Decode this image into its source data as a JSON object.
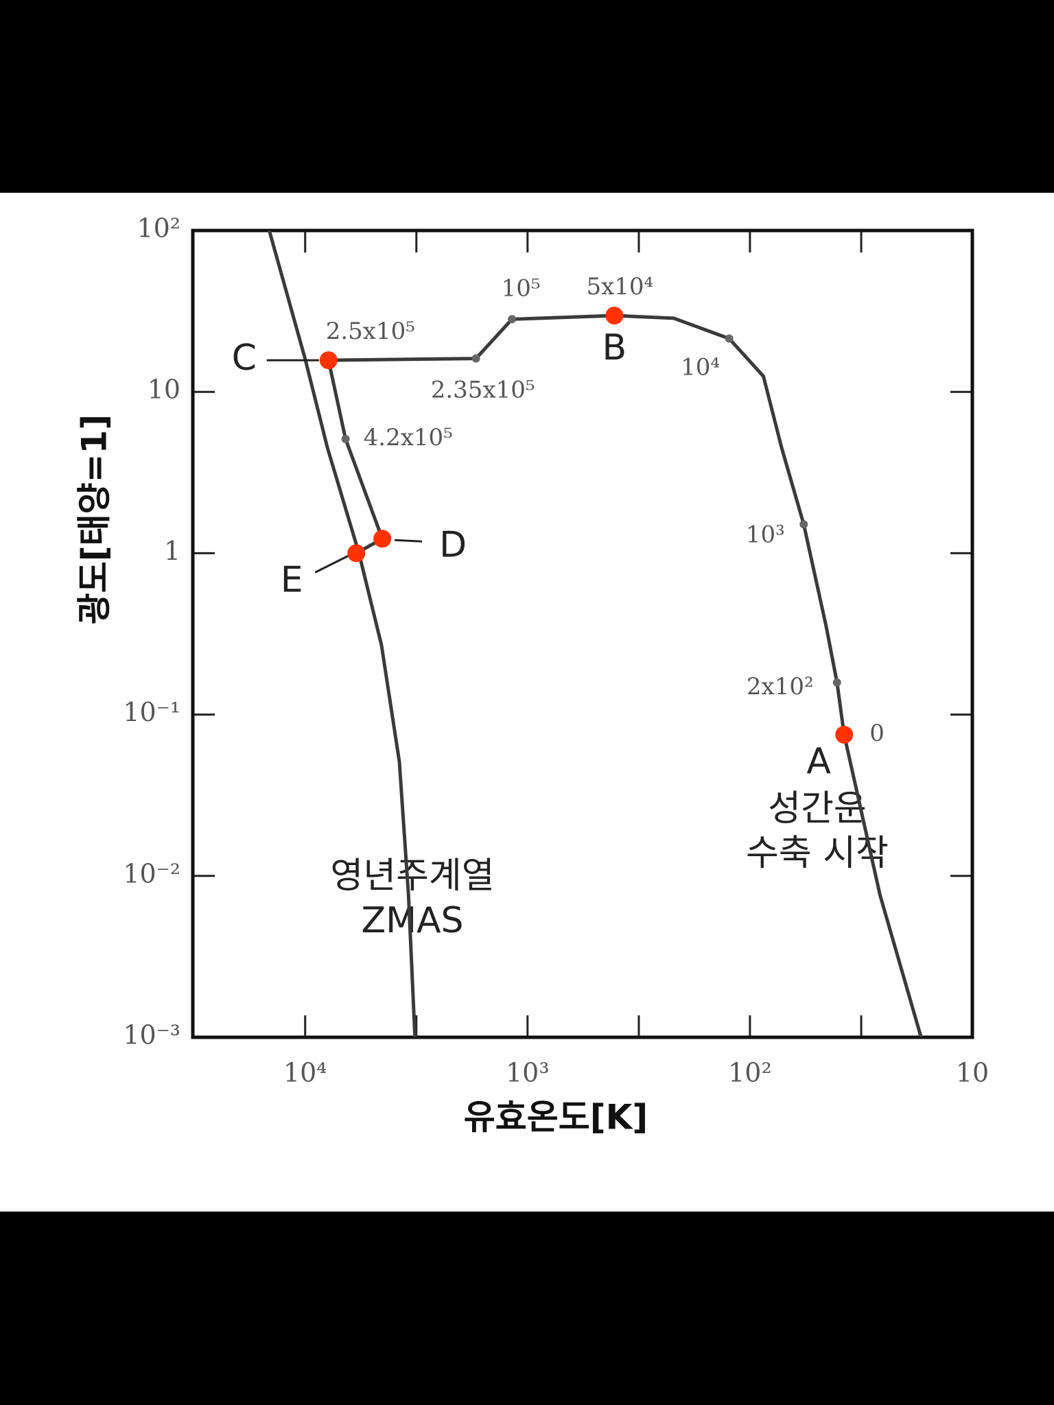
{
  "chart_data": {
    "type": "line",
    "x_label": "유효온도[K]",
    "y_label": "광도[태양=1]",
    "x_log": true,
    "y_log": true,
    "xlim": [
      32000,
      10
    ],
    "ylim": [
      0.001,
      100
    ],
    "xticks": [
      {
        "value": 10000,
        "label": "10⁴"
      },
      {
        "value": 1000,
        "label": "10³"
      },
      {
        "value": 100,
        "label": "10²"
      },
      10
    ],
    "xminorticks": [
      3162,
      316,
      31.6
    ],
    "yticks": [
      {
        "value": 100,
        "label": "10²"
      },
      10,
      1,
      {
        "value": 0.1,
        "label": "10⁻¹"
      },
      {
        "value": 0.01,
        "label": "10⁻²"
      },
      {
        "value": 0.001,
        "label": "10⁻³"
      }
    ],
    "series": [
      {
        "color": "#3a3a3a",
        "x": [
          14500,
          10000,
          7940,
          5730,
          4540,
          3770,
          3430,
          3210
        ],
        "y": [
          100,
          16,
          4.5,
          1,
          0.27,
          0.051,
          0.0076,
          0.001
        ]
      },
      {
        "color": "#3a3a3a",
        "x": [
          17,
          26,
          37.7,
          40.6,
          45.4,
          57.3,
          72,
          87,
          124,
          220,
          407,
          1175,
          1706,
          7850,
          6580,
          4500,
          5890
        ],
        "y": [
          0.001,
          0.0076,
          0.075,
          0.158,
          0.35,
          1.51,
          4.5,
          12.5,
          21.4,
          28.6,
          29.7,
          28.2,
          16.1,
          15.7,
          5.1,
          1.23,
          1.0
        ]
      }
    ],
    "age_points": [
      {
        "label": "10⁵",
        "x": 1175,
        "y": 28.2
      },
      {
        "label": "2.35x10⁵",
        "x": 1706,
        "y": 16.1
      },
      {
        "label": "10⁴",
        "x": 124,
        "y": 21.4
      },
      {
        "label": "10³",
        "x": 57.3,
        "y": 1.51
      },
      {
        "label": "2x10²",
        "x": 40.6,
        "y": 0.158
      },
      {
        "label": "4.2x10⁵",
        "x": 6580,
        "y": 5.1
      }
    ],
    "stages": [
      {
        "label": "A",
        "age": "0",
        "x": 37.7,
        "y": 0.075,
        "color": "#ff3300"
      },
      {
        "label": "B",
        "age": "5x10⁴",
        "x": 407,
        "y": 29.7,
        "color": "#ff3300"
      },
      {
        "label": "C",
        "age": "2.5x10⁵",
        "x": 7850,
        "y": 15.7,
        "color": "#ff3300"
      },
      {
        "label": "D",
        "x": 4500,
        "y": 1.23,
        "color": "#ff3300"
      },
      {
        "label": "E",
        "x": 5890,
        "y": 1.0,
        "color": "#ff3300"
      }
    ],
    "annotations": [
      "영년주계열",
      "ZMAS",
      "성간운",
      "수축 시작"
    ]
  }
}
